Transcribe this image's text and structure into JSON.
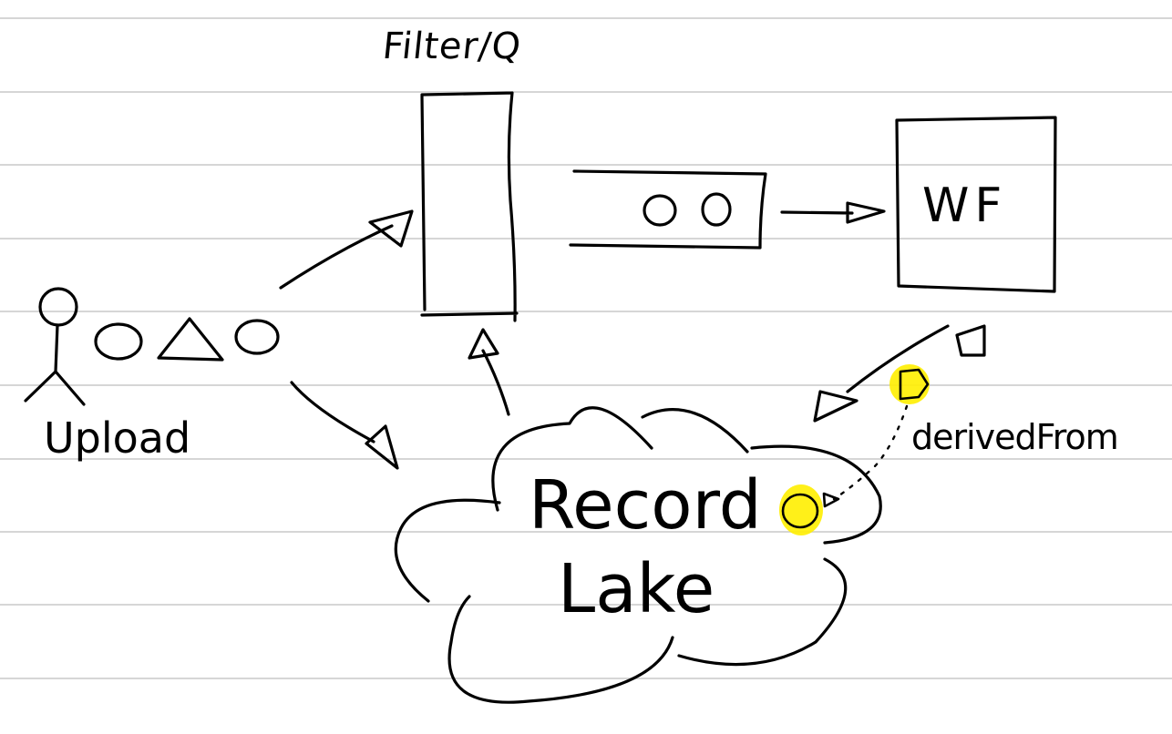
{
  "labels": {
    "filter_queue": "Filter/Q",
    "workflow": "WF",
    "upload": "Upload",
    "record": "Record",
    "lake": "Lake",
    "derived_from": "derivedFrom"
  },
  "colors": {
    "ink": "#000000",
    "highlight": "#ffee00",
    "ruled_lines": "#c8c8c8",
    "paper": "#ffffff"
  },
  "icons": [
    "stick-figure-icon",
    "circle-shape-icon",
    "triangle-shape-icon",
    "square-shape-icon",
    "cloud-shape-icon"
  ]
}
